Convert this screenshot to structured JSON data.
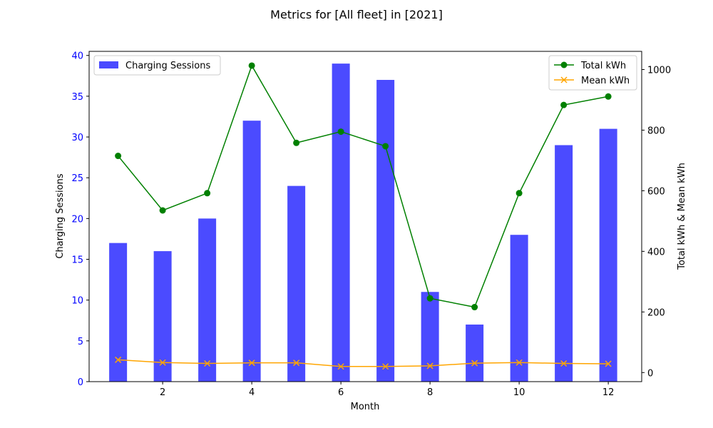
{
  "chart_data": {
    "type": "bar",
    "title": "Metrics for [All fleet] in [2021]",
    "xlabel": "Month",
    "ylabel_left": "Charging Sessions",
    "ylabel_right": "Total kWh & Mean kWh",
    "x": [
      1,
      2,
      3,
      4,
      5,
      6,
      7,
      8,
      9,
      10,
      11,
      12
    ],
    "x_ticks": [
      2,
      4,
      6,
      8,
      10,
      12
    ],
    "x_range": [
      0.35,
      12.75
    ],
    "y_left_range": [
      0,
      40.5
    ],
    "y_left_ticks": [
      0,
      5,
      10,
      15,
      20,
      25,
      30,
      35,
      40
    ],
    "y_right_range": [
      -30,
      1060
    ],
    "y_right_ticks": [
      0,
      200,
      400,
      600,
      800,
      1000
    ],
    "grid": false,
    "series": [
      {
        "name": "Charging Sessions",
        "type": "bar",
        "axis": "left",
        "color": "#4b4bff",
        "values": [
          17,
          16,
          20,
          32,
          24,
          39,
          37,
          11,
          7,
          18,
          29,
          31
        ]
      },
      {
        "name": "Total kWh",
        "type": "line",
        "axis": "right",
        "marker": "circle",
        "color": "#008000",
        "values": [
          715,
          535,
          592,
          1013,
          758,
          795,
          747,
          245,
          216,
          592,
          883,
          911
        ]
      },
      {
        "name": "Mean kWh",
        "type": "line",
        "axis": "right",
        "marker": "x",
        "color": "#ffa500",
        "values": [
          42,
          33,
          30,
          32,
          32,
          20,
          20,
          22,
          31,
          33,
          30,
          29
        ]
      }
    ],
    "legend_left": {
      "placement": "top-left"
    },
    "legend_right": {
      "placement": "top-right"
    },
    "left_axis_color": "#0000ff"
  }
}
